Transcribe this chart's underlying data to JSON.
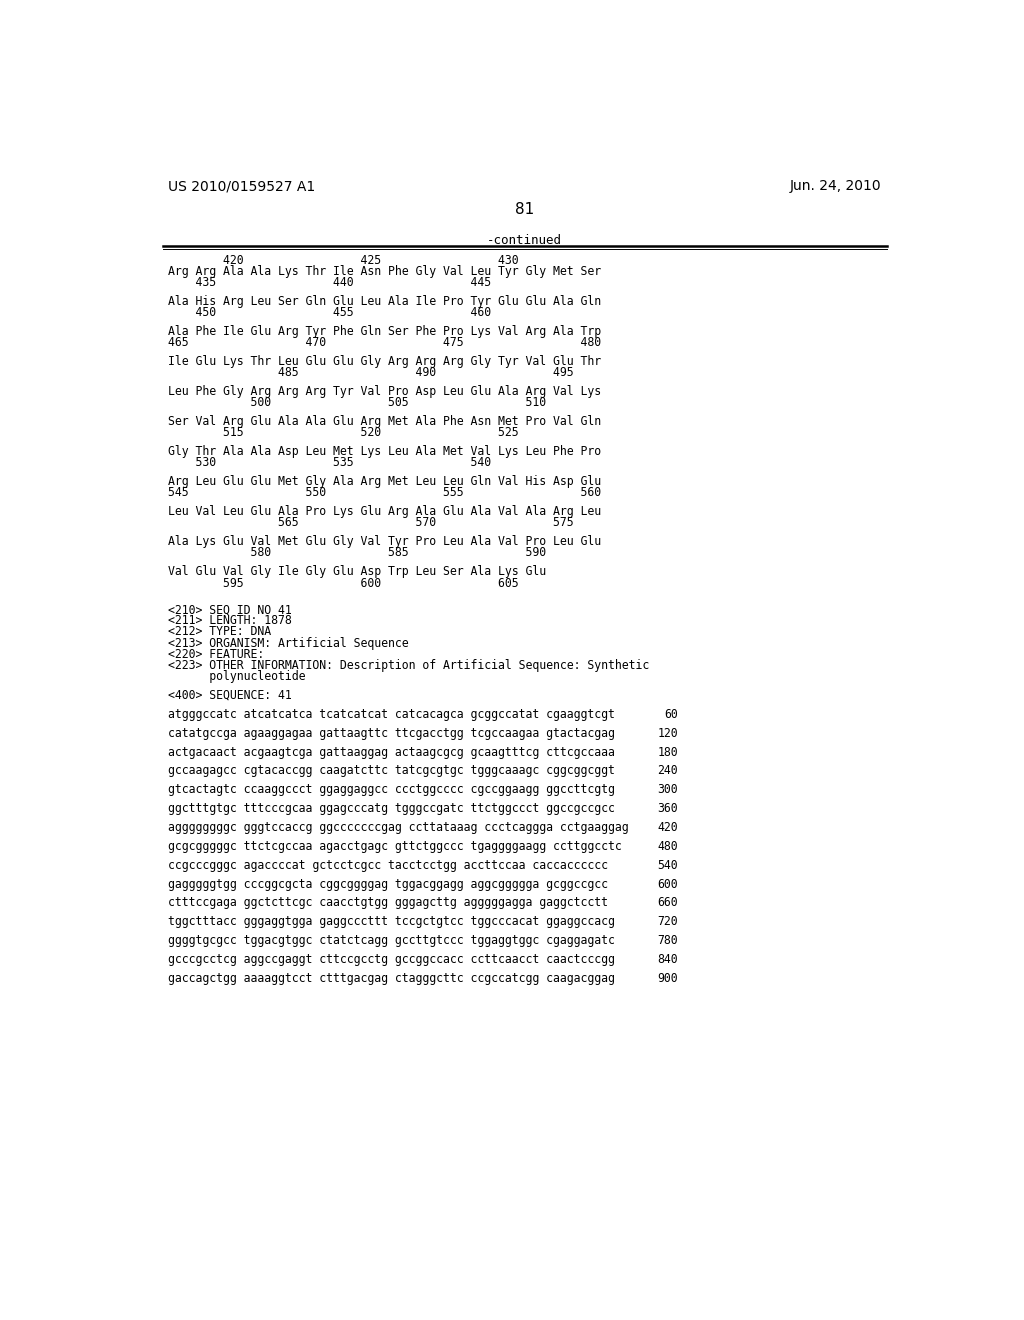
{
  "header_left": "US 2010/0159527 A1",
  "header_right": "Jun. 24, 2010",
  "page_number": "81",
  "continued_label": "-continued",
  "background_color": "#ffffff",
  "text_color": "#000000",
  "content_lines": [
    {
      "type": "numbering",
      "text": "        420                 425                 430"
    },
    {
      "type": "sequence",
      "text": "Arg Arg Ala Ala Lys Thr Ile Asn Phe Gly Val Leu Tyr Gly Met Ser"
    },
    {
      "type": "numbering",
      "text": "    435                 440                 445"
    },
    {
      "type": "blank"
    },
    {
      "type": "sequence",
      "text": "Ala His Arg Leu Ser Gln Glu Leu Ala Ile Pro Tyr Glu Glu Ala Gln"
    },
    {
      "type": "numbering",
      "text": "    450                 455                 460"
    },
    {
      "type": "blank"
    },
    {
      "type": "sequence",
      "text": "Ala Phe Ile Glu Arg Tyr Phe Gln Ser Phe Pro Lys Val Arg Ala Trp"
    },
    {
      "type": "numbering",
      "text": "465                 470                 475                 480"
    },
    {
      "type": "blank"
    },
    {
      "type": "sequence",
      "text": "Ile Glu Lys Thr Leu Glu Glu Gly Arg Arg Arg Gly Tyr Val Glu Thr"
    },
    {
      "type": "numbering",
      "text": "                485                 490                 495"
    },
    {
      "type": "blank"
    },
    {
      "type": "sequence",
      "text": "Leu Phe Gly Arg Arg Arg Tyr Val Pro Asp Leu Glu Ala Arg Val Lys"
    },
    {
      "type": "numbering",
      "text": "            500                 505                 510"
    },
    {
      "type": "blank"
    },
    {
      "type": "sequence",
      "text": "Ser Val Arg Glu Ala Ala Glu Arg Met Ala Phe Asn Met Pro Val Gln"
    },
    {
      "type": "numbering",
      "text": "        515                 520                 525"
    },
    {
      "type": "blank"
    },
    {
      "type": "sequence",
      "text": "Gly Thr Ala Ala Asp Leu Met Lys Leu Ala Met Val Lys Leu Phe Pro"
    },
    {
      "type": "numbering",
      "text": "    530                 535                 540"
    },
    {
      "type": "blank"
    },
    {
      "type": "sequence",
      "text": "Arg Leu Glu Glu Met Gly Ala Arg Met Leu Leu Gln Val His Asp Glu"
    },
    {
      "type": "numbering",
      "text": "545                 550                 555                 560"
    },
    {
      "type": "blank"
    },
    {
      "type": "sequence",
      "text": "Leu Val Leu Glu Ala Pro Lys Glu Arg Ala Glu Ala Val Ala Arg Leu"
    },
    {
      "type": "numbering",
      "text": "                565                 570                 575"
    },
    {
      "type": "blank"
    },
    {
      "type": "sequence",
      "text": "Ala Lys Glu Val Met Glu Gly Val Tyr Pro Leu Ala Val Pro Leu Glu"
    },
    {
      "type": "numbering",
      "text": "            580                 585                 590"
    },
    {
      "type": "blank"
    },
    {
      "type": "sequence",
      "text": "Val Glu Val Gly Ile Gly Glu Asp Trp Leu Ser Ala Lys Glu"
    },
    {
      "type": "numbering",
      "text": "        595                 600                 605"
    },
    {
      "type": "blank"
    },
    {
      "type": "blank"
    },
    {
      "type": "seqid",
      "text": "<210> SEQ ID NO 41"
    },
    {
      "type": "seqid",
      "text": "<211> LENGTH: 1878"
    },
    {
      "type": "seqid",
      "text": "<212> TYPE: DNA"
    },
    {
      "type": "seqid",
      "text": "<213> ORGANISM: Artificial Sequence"
    },
    {
      "type": "seqid",
      "text": "<220> FEATURE:"
    },
    {
      "type": "seqid",
      "text": "<223> OTHER INFORMATION: Description of Artificial Sequence: Synthetic"
    },
    {
      "type": "seqid_indent",
      "text": "      polynucleotide"
    },
    {
      "type": "blank"
    },
    {
      "type": "seqid",
      "text": "<400> SEQUENCE: 41"
    },
    {
      "type": "blank"
    },
    {
      "type": "dna",
      "text": "atgggccatc atcatcatca tcatcatcat catcacagca gcggccatat cgaaggtcgt",
      "num": "60"
    },
    {
      "type": "blank"
    },
    {
      "type": "dna",
      "text": "catatgccga agaaggagaa gattaagttc ttcgacctgg tcgccaagaa gtactacgag",
      "num": "120"
    },
    {
      "type": "blank"
    },
    {
      "type": "dna",
      "text": "actgacaact acgaagtcga gattaaggag actaagcgcg gcaagtttcg cttcgccaaa",
      "num": "180"
    },
    {
      "type": "blank"
    },
    {
      "type": "dna",
      "text": "gccaagagcc cgtacaccgg caagatcttc tatcgcgtgc tgggcaaagc cggcggcggt",
      "num": "240"
    },
    {
      "type": "blank"
    },
    {
      "type": "dna",
      "text": "gtcactagtc ccaaggccct ggaggaggcc ccctggcccc cgccggaagg ggccttcgtg",
      "num": "300"
    },
    {
      "type": "blank"
    },
    {
      "type": "dna",
      "text": "ggctttgtgc tttcccgcaa ggagcccatg tgggccgatc ttctggccct ggccgccgcc",
      "num": "360"
    },
    {
      "type": "blank"
    },
    {
      "type": "dna",
      "text": "aggggggggc gggtccaccg ggcccccccgag ccttataaag ccctcaggga cctgaaggag",
      "num": "420"
    },
    {
      "type": "blank"
    },
    {
      "type": "dna",
      "text": "gcgcgggggc ttctcgccaa agacctgagc gttctggccc tgaggggaagg ccttggcctc",
      "num": "480"
    },
    {
      "type": "blank"
    },
    {
      "type": "dna",
      "text": "ccgcccgggc agaccccat gctcctcgcc tacctcctgg accttccaa caccacccccc",
      "num": "540"
    },
    {
      "type": "blank"
    },
    {
      "type": "dna",
      "text": "gagggggtgg cccggcgcta cggcggggag tggacggagg aggcggggga gcggccgcc",
      "num": "600"
    },
    {
      "type": "blank"
    },
    {
      "type": "dna",
      "text": "ctttccgaga ggctcttcgc caacctgtgg gggagcttg agggggagga gaggctcctt",
      "num": "660"
    },
    {
      "type": "blank"
    },
    {
      "type": "dna",
      "text": "tggctttacc gggaggtgga gaggcccttt tccgctgtcc tggcccacat ggaggccacg",
      "num": "720"
    },
    {
      "type": "blank"
    },
    {
      "type": "dna",
      "text": "ggggtgcgcc tggacgtggc ctatctcagg gccttgtccc tggaggtggc cgaggagatc",
      "num": "780"
    },
    {
      "type": "blank"
    },
    {
      "type": "dna",
      "text": "gcccgcctcg aggccgaggt cttccgcctg gccggccacc ccttcaacct caactcccgg",
      "num": "840"
    },
    {
      "type": "blank"
    },
    {
      "type": "dna",
      "text": "gaccagctgg aaaaggtcct ctttgacgag ctagggcttc ccgccatcgg caagacggag",
      "num": "900"
    }
  ]
}
